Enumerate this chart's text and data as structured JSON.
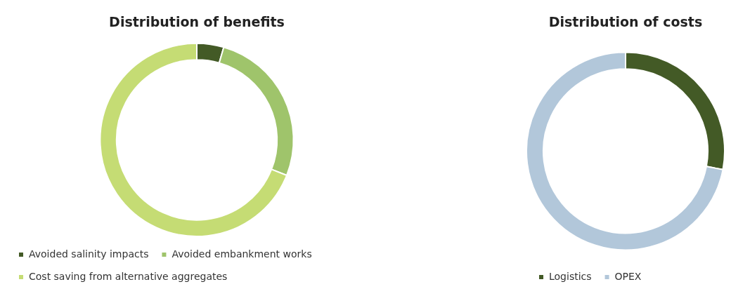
{
  "chart_data": [
    {
      "type": "donut",
      "title": "Distribution of benefits",
      "categories": [
        "Avoided salinity impacts",
        "Avoided embankment works",
        "Cost saving from alternative aggregates"
      ],
      "values": [
        4.5,
        26.5,
        69
      ],
      "colors": [
        "#435a26",
        "#9fc46b",
        "#c5dc74"
      ],
      "legend": "bottom"
    },
    {
      "type": "donut",
      "title": "Distribution of costs",
      "categories": [
        "Logistics",
        "OPEX"
      ],
      "values": [
        28,
        72
      ],
      "colors": [
        "#435a26",
        "#b2c7da"
      ],
      "legend": "bottom"
    }
  ]
}
